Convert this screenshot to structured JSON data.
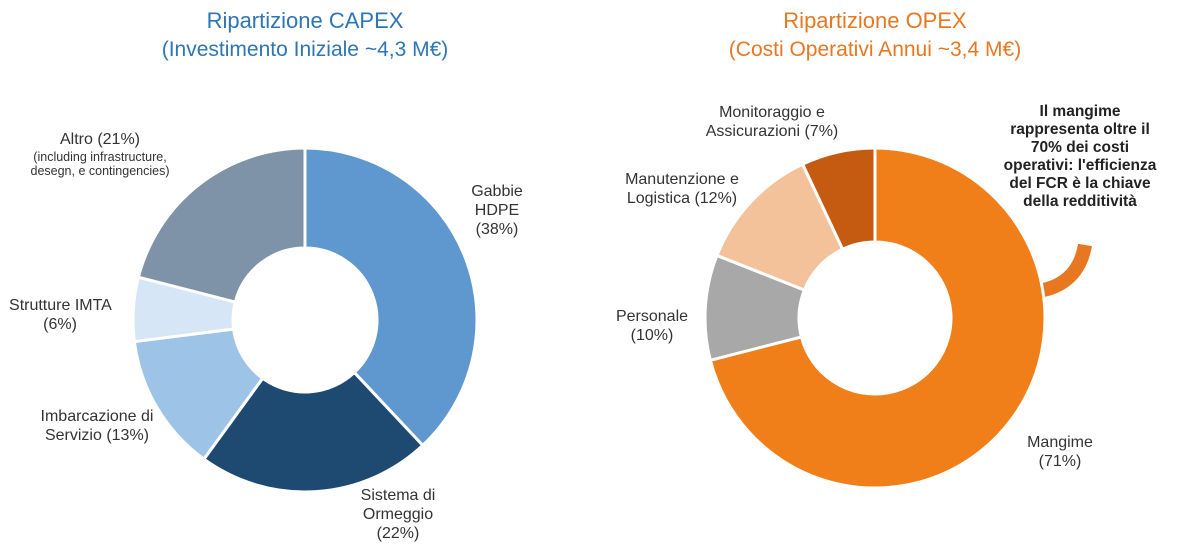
{
  "chart_data": [
    {
      "type": "pie",
      "donut": true,
      "title": "Ripartizione CAPEX",
      "subtitle": "(Investimento Iniziale ~4,3 M€)",
      "title_color": "#2e75b6",
      "categories": [
        "Gabbie HDPE",
        "Sistema di Ormeggio",
        "Imbarcazione di Servizio",
        "Strutture IMTA",
        "Altro"
      ],
      "values": [
        38,
        22,
        13,
        6,
        21
      ],
      "value_labels": [
        "(38%)",
        "(22%)",
        "(13%)",
        "(6%)",
        "(21%)"
      ],
      "colors": [
        "#5f98cf",
        "#1e4a72",
        "#9dc3e6",
        "#d6e6f6",
        "#7f93a8"
      ],
      "annotations": [
        {
          "category": 4,
          "text": "(including infrastructure, desegn, e contingencies)"
        }
      ]
    },
    {
      "type": "pie",
      "donut": true,
      "title": "Ripartizione OPEX",
      "subtitle": "(Costi Operativi Annui ~3,4 M€)",
      "title_color": "#e87722",
      "categories": [
        "Mangime",
        "Personale",
        "Manutenzione e Logistica",
        "Monitoraggio e Assicurazioni"
      ],
      "values": [
        71,
        10,
        12,
        7
      ],
      "value_labels": [
        "(71%)",
        "(10%)",
        "(12%)",
        "(7%)"
      ],
      "colors": [
        "#f07f1a",
        "#a8a8a8",
        "#f4c29a",
        "#c55a11"
      ],
      "callout": "Il mangime rappresenta oltre il 70% dei costi operativi: l'efficienza del FCR è la chiave della redditività"
    }
  ]
}
